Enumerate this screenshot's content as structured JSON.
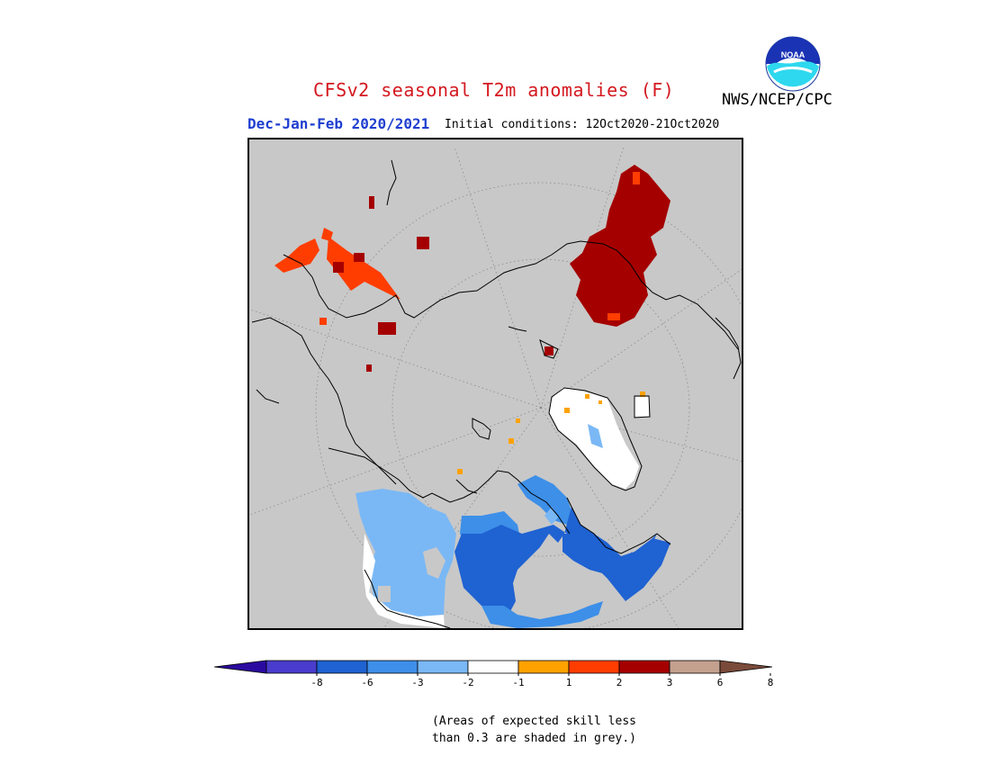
{
  "header": {
    "title": "CFSv2 seasonal T2m anomalies (F)",
    "agency": "NWS/NCEP/CPC",
    "logo_text": "NOAA",
    "season": "Dec-Jan-Feb 2020/2021",
    "initial_conditions": "Initial conditions: 12Oct2020-21Oct2020"
  },
  "map": {
    "projection": "north polar stereographic",
    "background_color": "#c8c8c8",
    "coastline_color": "#000000",
    "graticule": "dotted",
    "anomaly_regions": [
      {
        "region": "Siberia",
        "category": "3 to 6",
        "color": "#a50000"
      },
      {
        "region": "Scandinavia / Finland",
        "category": "3 to 6",
        "color": "#a50000"
      },
      {
        "region": "Svalbard",
        "category": "3 to 6",
        "color": "#a50000"
      },
      {
        "region": "Alaska / Bering Strait",
        "category": "2 to 3",
        "color": "#ff3d00"
      },
      {
        "region": "Greenland",
        "category": "-1 to 1",
        "color": "#ffffff"
      },
      {
        "region": "Western Canada",
        "category": "-2 to -1",
        "color": "#7ab8f5"
      },
      {
        "region": "Central Canada / Hudson Bay",
        "category": "-6 to -3",
        "color": "#1f62d2"
      }
    ]
  },
  "colorbar": {
    "ticks": [
      "-8",
      "-6",
      "-3",
      "-2",
      "-1",
      "1",
      "2",
      "3",
      "6",
      "8"
    ],
    "colors": [
      "#2b0aa0",
      "#4a3ccc",
      "#1f62d2",
      "#3d8fe8",
      "#7ab8f5",
      "#ffffff",
      "#ffa200",
      "#ff3d00",
      "#a50000",
      "#c4a08f",
      "#7a4a3a"
    ]
  },
  "footnote": {
    "line1": "(Areas of expected skill less",
    "line2": "than 0.3 are shaded in grey.)"
  }
}
